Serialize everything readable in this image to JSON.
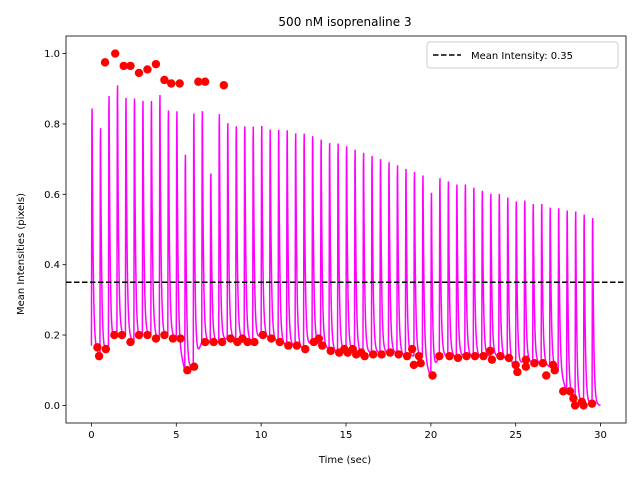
{
  "chart_data": {
    "type": "line",
    "title": "500 nM isoprenaline 3",
    "xlabel": "Time (sec)",
    "ylabel": "Mean Intensities (pixels)",
    "xlim": [
      -1.5,
      31.5
    ],
    "ylim": [
      -0.05,
      1.05
    ],
    "x_ticks": [
      0,
      5,
      10,
      15,
      20,
      25,
      30
    ],
    "y_ticks": [
      0.0,
      0.2,
      0.4,
      0.6,
      0.8,
      1.0
    ],
    "x_tick_labels": [
      "0",
      "5",
      "10",
      "15",
      "20",
      "25",
      "30"
    ],
    "y_tick_labels": [
      "0.0",
      "0.2",
      "0.4",
      "0.6",
      "0.8",
      "1.0"
    ],
    "grid": false,
    "legend_position": "top-right",
    "series": [
      {
        "kind": "signal",
        "color": "#ff00ff",
        "peak_times": [
          0.0,
          0.5,
          1.0,
          1.5,
          2.0,
          2.5,
          3.0,
          3.5,
          4.0,
          4.5,
          5.0,
          5.5,
          6.0,
          6.5,
          7.0,
          7.5,
          8.0,
          8.5,
          9.0,
          9.5,
          10.0,
          10.5,
          11.0,
          11.5,
          12.0,
          12.5,
          13.0,
          13.5,
          14.0,
          14.5,
          15.0,
          15.5,
          16.0,
          16.5,
          17.0,
          17.5,
          18.0,
          18.5,
          19.0,
          19.5,
          20.0,
          20.5,
          21.0,
          21.5,
          22.0,
          22.5,
          23.0,
          23.5,
          24.0,
          24.5,
          25.0,
          25.5,
          26.0,
          26.5,
          27.0,
          27.5,
          28.0,
          28.5,
          29.0,
          29.5
        ],
        "peak_values": [
          0.93,
          0.87,
          0.97,
          1.0,
          0.96,
          0.96,
          0.95,
          0.95,
          0.97,
          0.92,
          0.92,
          0.79,
          0.92,
          0.92,
          0.72,
          0.91,
          0.88,
          0.87,
          0.87,
          0.87,
          0.87,
          0.86,
          0.86,
          0.86,
          0.85,
          0.85,
          0.84,
          0.83,
          0.82,
          0.82,
          0.81,
          0.8,
          0.79,
          0.78,
          0.77,
          0.76,
          0.75,
          0.74,
          0.73,
          0.72,
          0.67,
          0.71,
          0.7,
          0.69,
          0.69,
          0.68,
          0.67,
          0.66,
          0.66,
          0.65,
          0.64,
          0.64,
          0.63,
          0.63,
          0.62,
          0.62,
          0.62,
          0.62,
          0.61,
          0.6
        ],
        "trough_values": [
          0.17,
          0.14,
          0.16,
          0.2,
          0.2,
          0.18,
          0.2,
          0.2,
          0.19,
          0.2,
          0.19,
          0.1,
          0.11,
          0.18,
          0.18,
          0.18,
          0.19,
          0.19,
          0.19,
          0.18,
          0.2,
          0.19,
          0.18,
          0.17,
          0.17,
          0.16,
          0.18,
          0.17,
          0.16,
          0.15,
          0.16,
          0.15,
          0.15,
          0.15,
          0.15,
          0.15,
          0.15,
          0.14,
          0.14,
          0.14,
          0.08,
          0.14,
          0.14,
          0.14,
          0.14,
          0.14,
          0.14,
          0.14,
          0.14,
          0.13,
          0.1,
          0.13,
          0.12,
          0.12,
          0.11,
          0.1,
          0.04,
          0.01,
          0.01,
          0.0
        ]
      },
      {
        "kind": "markers",
        "color": "#ff0000",
        "points": [
          [
            0.8,
            0.975
          ],
          [
            1.4,
            1.0
          ],
          [
            1.9,
            0.965
          ],
          [
            2.3,
            0.965
          ],
          [
            2.8,
            0.945
          ],
          [
            3.3,
            0.955
          ],
          [
            3.8,
            0.97
          ],
          [
            4.3,
            0.925
          ],
          [
            4.7,
            0.915
          ],
          [
            5.2,
            0.915
          ],
          [
            6.3,
            0.92
          ],
          [
            6.7,
            0.92
          ],
          [
            7.8,
            0.91
          ],
          [
            0.35,
            0.165
          ],
          [
            0.45,
            0.14
          ],
          [
            0.85,
            0.16
          ],
          [
            1.35,
            0.2
          ],
          [
            1.8,
            0.2
          ],
          [
            2.3,
            0.18
          ],
          [
            2.8,
            0.2
          ],
          [
            3.3,
            0.2
          ],
          [
            3.8,
            0.19
          ],
          [
            4.3,
            0.2
          ],
          [
            4.8,
            0.19
          ],
          [
            5.25,
            0.19
          ],
          [
            5.65,
            0.1
          ],
          [
            6.05,
            0.11
          ],
          [
            6.7,
            0.18
          ],
          [
            7.2,
            0.18
          ],
          [
            7.7,
            0.18
          ],
          [
            8.2,
            0.19
          ],
          [
            8.6,
            0.18
          ],
          [
            8.9,
            0.19
          ],
          [
            9.2,
            0.18
          ],
          [
            9.6,
            0.18
          ],
          [
            10.1,
            0.2
          ],
          [
            10.6,
            0.19
          ],
          [
            11.1,
            0.18
          ],
          [
            11.6,
            0.17
          ],
          [
            12.1,
            0.17
          ],
          [
            12.6,
            0.16
          ],
          [
            13.1,
            0.18
          ],
          [
            13.4,
            0.19
          ],
          [
            13.6,
            0.17
          ],
          [
            14.1,
            0.155
          ],
          [
            14.6,
            0.15
          ],
          [
            14.9,
            0.16
          ],
          [
            15.1,
            0.15
          ],
          [
            15.4,
            0.16
          ],
          [
            15.6,
            0.145
          ],
          [
            15.9,
            0.15
          ],
          [
            16.1,
            0.14
          ],
          [
            16.6,
            0.145
          ],
          [
            17.1,
            0.145
          ],
          [
            17.6,
            0.15
          ],
          [
            18.1,
            0.145
          ],
          [
            18.6,
            0.14
          ],
          [
            18.9,
            0.16
          ],
          [
            19.0,
            0.115
          ],
          [
            19.4,
            0.12
          ],
          [
            19.3,
            0.14
          ],
          [
            20.1,
            0.085
          ],
          [
            20.5,
            0.14
          ],
          [
            21.1,
            0.14
          ],
          [
            21.6,
            0.135
          ],
          [
            22.1,
            0.14
          ],
          [
            22.6,
            0.14
          ],
          [
            23.1,
            0.14
          ],
          [
            23.5,
            0.155
          ],
          [
            23.6,
            0.13
          ],
          [
            24.1,
            0.14
          ],
          [
            24.6,
            0.135
          ],
          [
            25.0,
            0.115
          ],
          [
            25.1,
            0.095
          ],
          [
            25.6,
            0.13
          ],
          [
            25.6,
            0.11
          ],
          [
            26.1,
            0.12
          ],
          [
            26.6,
            0.12
          ],
          [
            26.8,
            0.085
          ],
          [
            27.2,
            0.115
          ],
          [
            27.3,
            0.1
          ],
          [
            27.8,
            0.04
          ],
          [
            28.2,
            0.04
          ],
          [
            28.4,
            0.02
          ],
          [
            28.5,
            0.0
          ],
          [
            28.9,
            0.01
          ],
          [
            29.0,
            0.0
          ],
          [
            29.5,
            0.005
          ]
        ]
      },
      {
        "kind": "reference-line",
        "name": "Mean Intensity: 0.35",
        "value": 0.35,
        "color": "#000000",
        "style": "dashed"
      }
    ]
  }
}
